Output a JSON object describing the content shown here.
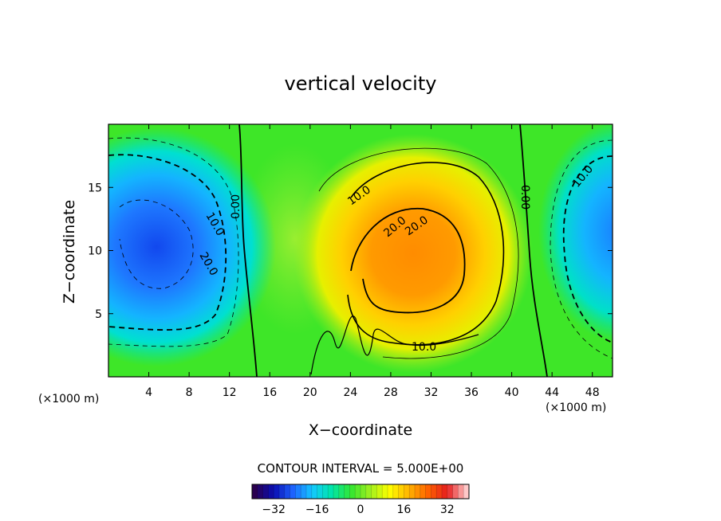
{
  "chart_data": {
    "type": "contour",
    "title": "vertical velocity",
    "xlabel": "X−coordinate",
    "ylabel": "Z−coordinate",
    "x_unit": "(×1000 m)",
    "xlim": [
      0,
      50
    ],
    "ylim": [
      0,
      20
    ],
    "x_ticks": [
      4,
      8,
      12,
      16,
      20,
      24,
      28,
      32,
      36,
      40,
      44,
      48
    ],
    "y_ticks": [
      5,
      10,
      15
    ],
    "contour_interval_text": "CONTOUR INTERVAL = 5.000E+00",
    "contour_labels": [
      "0.00",
      "10.0",
      "20.0",
      "20.0",
      "10.0",
      "10.0",
      "20.0",
      "0.00",
      "10.0",
      "10.0"
    ],
    "colorbar": {
      "ticks": [
        -32,
        -16,
        0,
        16,
        32
      ],
      "tick_labels": [
        "−32",
        "−16",
        "0",
        "16",
        "32"
      ],
      "range": [
        -40,
        40
      ],
      "colormap": [
        "#2a0050",
        "#0a0fb4",
        "#1e64ff",
        "#14c8ff",
        "#00e6aa",
        "#32e632",
        "#a0f01e",
        "#ffff00",
        "#ffb400",
        "#ff6400",
        "#e61e1e",
        "#ffc8c8"
      ]
    },
    "features": [
      {
        "name": "updraft",
        "x": 31,
        "z": 9,
        "w": 23
      },
      {
        "name": "downdraft-left",
        "x": 5,
        "z": 10,
        "w": -24
      },
      {
        "name": "downdraft-right",
        "x": 50,
        "z": 11,
        "w": -17
      }
    ]
  }
}
